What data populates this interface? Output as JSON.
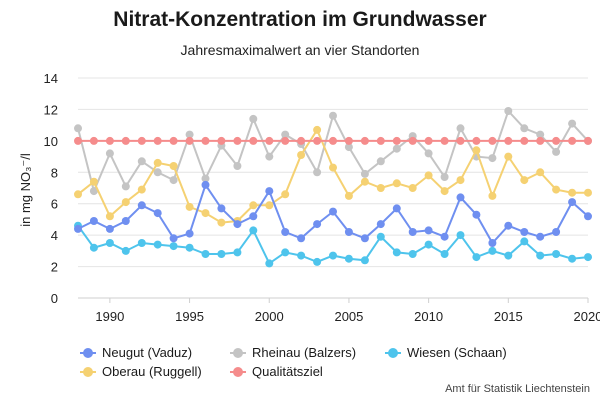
{
  "chart_data": {
    "type": "line",
    "title": "Nitrat-Konzentration im Grundwasser",
    "subtitle": "Jahresmaximalwert an vier Standorten",
    "xlabel": "",
    "ylabel": "in mg NO₃⁻/l",
    "xlim": [
      1988,
      2020
    ],
    "ylim": [
      0,
      14
    ],
    "x_ticks": [
      "1990",
      "1995",
      "2000",
      "2005",
      "2010",
      "2015",
      "2020"
    ],
    "y_ticks": [
      "0",
      "2",
      "4",
      "6",
      "8",
      "10",
      "12",
      "14"
    ],
    "grid": true,
    "legend_position": "bottom",
    "years": [
      1988,
      1989,
      1990,
      1991,
      1992,
      1993,
      1994,
      1995,
      1996,
      1997,
      1998,
      1999,
      2000,
      2001,
      2002,
      2003,
      2004,
      2005,
      2006,
      2007,
      2008,
      2009,
      2010,
      2011,
      2012,
      2013,
      2014,
      2015,
      2016,
      2017,
      2018,
      2019,
      2020
    ],
    "series": [
      {
        "name": "Neugut (Vaduz)",
        "color": "#6f8ff0",
        "values": [
          4.4,
          4.9,
          4.4,
          4.9,
          5.9,
          5.4,
          3.8,
          4.1,
          7.2,
          5.7,
          4.7,
          5.2,
          6.8,
          4.2,
          3.8,
          4.7,
          5.5,
          4.2,
          3.8,
          4.7,
          5.7,
          4.2,
          4.3,
          3.9,
          6.4,
          5.3,
          3.5,
          4.6,
          4.2,
          3.9,
          4.2,
          6.1,
          5.2
        ]
      },
      {
        "name": "Oberau (Ruggell)",
        "color": "#f5d172",
        "values": [
          6.6,
          7.4,
          5.2,
          6.1,
          6.9,
          8.6,
          8.4,
          5.8,
          5.4,
          4.8,
          4.9,
          5.9,
          5.9,
          6.6,
          9.1,
          10.7,
          8.3,
          6.5,
          7.4,
          7.0,
          7.3,
          7.0,
          7.8,
          6.8,
          7.5,
          9.4,
          6.5,
          9.0,
          7.5,
          8.0,
          6.9,
          6.7,
          6.7
        ]
      },
      {
        "name": "Rheinau (Balzers)",
        "color": "#c4c4c4",
        "values": [
          10.8,
          6.8,
          9.2,
          7.1,
          8.7,
          8.0,
          7.5,
          10.4,
          7.6,
          9.7,
          8.4,
          11.4,
          9.0,
          10.4,
          9.8,
          8.0,
          11.6,
          9.6,
          7.9,
          8.7,
          9.5,
          10.3,
          9.2,
          7.7,
          10.8,
          9.0,
          8.9,
          11.9,
          10.8,
          10.4,
          9.3,
          11.1,
          10.0
        ]
      },
      {
        "name": "Wiesen (Schaan)",
        "color": "#4ec4ec",
        "values": [
          4.6,
          3.2,
          3.5,
          3.0,
          3.5,
          3.4,
          3.3,
          3.2,
          2.8,
          2.8,
          2.9,
          4.3,
          2.2,
          2.9,
          2.7,
          2.3,
          2.7,
          2.5,
          2.4,
          3.9,
          2.9,
          2.8,
          3.4,
          2.8,
          4.0,
          2.6,
          3.0,
          2.7,
          3.6,
          2.7,
          2.8,
          2.5,
          2.6
        ]
      },
      {
        "name": "Qualitätsziel",
        "color": "#f58c8c",
        "values": [
          10,
          10,
          10,
          10,
          10,
          10,
          10,
          10,
          10,
          10,
          10,
          10,
          10,
          10,
          10,
          10,
          10,
          10,
          10,
          10,
          10,
          10,
          10,
          10,
          10,
          10,
          10,
          10,
          10,
          10,
          10,
          10,
          10
        ]
      }
    ]
  },
  "legend": {
    "items": [
      {
        "label": "Neugut (Vaduz)",
        "color": "#6f8ff0"
      },
      {
        "label": "Rheinau (Balzers)",
        "color": "#c4c4c4"
      },
      {
        "label": "Wiesen (Schaan)",
        "color": "#4ec4ec"
      },
      {
        "label": "Oberau (Ruggell)",
        "color": "#f5d172"
      },
      {
        "label": "Qualitätsziel",
        "color": "#f58c8c"
      }
    ]
  },
  "source": "Amt für Statistik Liechtenstein"
}
